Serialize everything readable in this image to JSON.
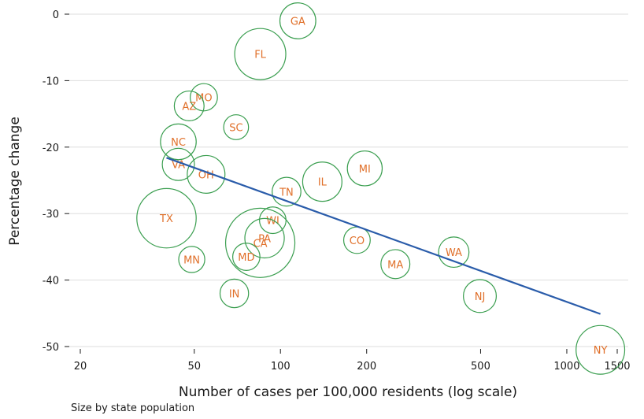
{
  "chart_data": {
    "type": "scatter",
    "xlabel": "Number of cases per 100,000 residents (log scale)",
    "ylabel": "Percentage change",
    "xscale": "log",
    "xlim": [
      20,
      1500
    ],
    "ylim": [
      -50,
      0
    ],
    "xticks": [
      20,
      50,
      100,
      200,
      500,
      1000,
      1500
    ],
    "yticks": [
      0,
      -10,
      -20,
      -30,
      -40,
      -50
    ],
    "grid": "horizontal",
    "colors": {
      "marker": "#3a9e4f",
      "label": "#e0702a",
      "trend": "#2a5caa",
      "grid": "#dddddd"
    },
    "points": [
      {
        "label": "GA",
        "x": 115,
        "y": -1,
        "pop": 10.6
      },
      {
        "label": "FL",
        "x": 85,
        "y": -6,
        "pop": 21.5
      },
      {
        "label": "MO",
        "x": 54,
        "y": -12.5,
        "pop": 6.1
      },
      {
        "label": "AZ",
        "x": 48,
        "y": -13.8,
        "pop": 7.3
      },
      {
        "label": "SC",
        "x": 70,
        "y": -17,
        "pop": 5.1
      },
      {
        "label": "NC",
        "x": 44,
        "y": -19.2,
        "pop": 10.5
      },
      {
        "label": "VA",
        "x": 44,
        "y": -22.6,
        "pop": 8.5
      },
      {
        "label": "OH",
        "x": 55,
        "y": -24.1,
        "pop": 11.7
      },
      {
        "label": "MI",
        "x": 197,
        "y": -23.2,
        "pop": 10
      },
      {
        "label": "IL",
        "x": 140,
        "y": -25.2,
        "pop": 12.7
      },
      {
        "label": "TN",
        "x": 105,
        "y": -26.7,
        "pop": 6.8
      },
      {
        "label": "TX",
        "x": 40,
        "y": -30.7,
        "pop": 29
      },
      {
        "label": "WI",
        "x": 94,
        "y": -31,
        "pop": 5.8
      },
      {
        "label": "PA",
        "x": 88,
        "y": -33.7,
        "pop": 12.8
      },
      {
        "label": "CA",
        "x": 85,
        "y": -34.4,
        "pop": 39.5
      },
      {
        "label": "CO",
        "x": 185,
        "y": -34,
        "pop": 5.8
      },
      {
        "label": "WA",
        "x": 403,
        "y": -35.8,
        "pop": 7.6
      },
      {
        "label": "MN",
        "x": 49,
        "y": -36.9,
        "pop": 5.6
      },
      {
        "label": "MD",
        "x": 76,
        "y": -36.5,
        "pop": 6.1
      },
      {
        "label": "MA",
        "x": 252,
        "y": -37.6,
        "pop": 6.9
      },
      {
        "label": "IN",
        "x": 69,
        "y": -42,
        "pop": 6.7
      },
      {
        "label": "NJ",
        "x": 497,
        "y": -42.4,
        "pop": 8.9
      },
      {
        "label": "NY",
        "x": 1310,
        "y": -50.5,
        "pop": 19.5
      }
    ],
    "trendline": {
      "x": [
        40,
        1310
      ],
      "y": [
        -21.6,
        -45.1
      ]
    },
    "note": "Size by state population"
  }
}
